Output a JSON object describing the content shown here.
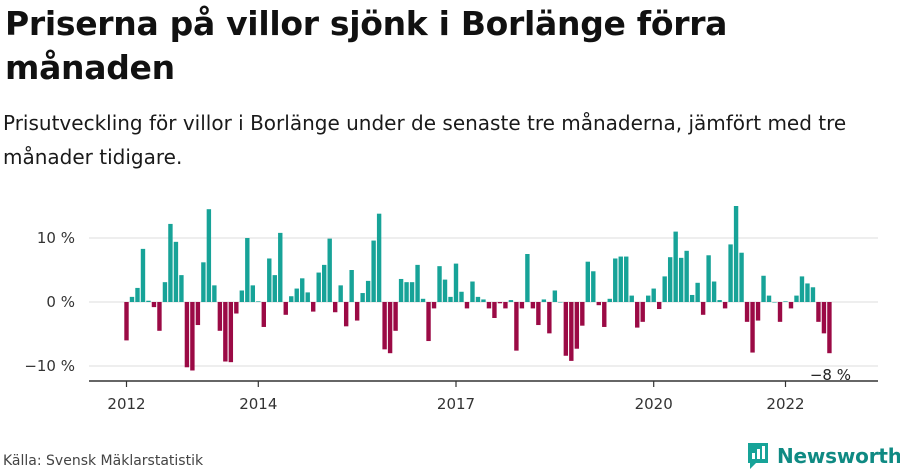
{
  "header": {
    "title": "Priserna på villor sjönk i Borlänge förra månaden",
    "subtitle": "Prisutveckling för villor i Borlänge under de senaste tre månaderna, jämfört med tre månader tidigare."
  },
  "footer": {
    "source": "Källa: Svensk Mäklarstatistik",
    "brand": "Newsworthy"
  },
  "colors": {
    "positive": "#17a398",
    "negative": "#9b0a45",
    "brand": "#0f8a83"
  },
  "chart_data": {
    "type": "bar",
    "title": "",
    "xlabel": "",
    "ylabel": "",
    "ylim": [
      -12,
      16.5
    ],
    "grid": true,
    "y_ticks": [
      {
        "value": 10,
        "label": "10 %"
      },
      {
        "value": 0,
        "label": "0 %"
      },
      {
        "value": -10,
        "label": "−10 %"
      }
    ],
    "x_ticks": [
      {
        "value": 2012,
        "label": "2012"
      },
      {
        "value": 2014,
        "label": "2014"
      },
      {
        "value": 2017,
        "label": "2017"
      },
      {
        "value": 2020,
        "label": "2020"
      },
      {
        "value": 2022,
        "label": "2022"
      }
    ],
    "x_start": 2012,
    "points_per_year": 12,
    "values": [
      -6.0,
      0.8,
      2.2,
      8.3,
      0.2,
      -0.8,
      -4.5,
      3.1,
      12.2,
      9.4,
      4.2,
      -10.2,
      -10.7,
      -3.6,
      6.2,
      14.5,
      2.6,
      -4.5,
      -9.3,
      -9.4,
      -1.8,
      1.8,
      10.0,
      2.6,
      0.1,
      -3.9,
      6.8,
      4.2,
      10.8,
      -2.0,
      0.9,
      2.1,
      3.7,
      1.5,
      -1.5,
      4.6,
      5.8,
      9.9,
      -1.6,
      2.6,
      -3.8,
      5.0,
      -2.9,
      1.4,
      3.3,
      9.6,
      13.8,
      -7.4,
      -8.0,
      -4.5,
      3.6,
      3.1,
      3.1,
      5.8,
      0.5,
      -6.1,
      -1.0,
      5.6,
      3.5,
      0.8,
      6.0,
      1.6,
      -1.0,
      3.2,
      0.8,
      0.4,
      -1.0,
      -2.5,
      -0.2,
      -1.0,
      0.3,
      -7.6,
      -1.0,
      7.5,
      -1.0,
      -3.6,
      0.4,
      -4.9,
      1.8,
      0.0,
      -8.4,
      -9.2,
      -7.3,
      -3.7,
      6.3,
      4.8,
      -0.5,
      -3.9,
      0.5,
      6.8,
      7.1,
      7.1,
      1.0,
      -4.0,
      -3.1,
      1.0,
      2.1,
      -1.1,
      4.0,
      7.0,
      11.0,
      6.9,
      8.0,
      1.1,
      3.0,
      -2.0,
      7.3,
      3.2,
      0.3,
      -1.0,
      9.0,
      15.0,
      7.7,
      -3.1,
      -7.9,
      -2.9,
      4.1,
      1.0,
      0.0,
      -3.1,
      0.1,
      -1.0,
      1.0,
      4.0,
      2.9,
      2.3,
      -3.1,
      -4.9,
      -8.0
    ],
    "annotation": {
      "label": "−8 %"
    }
  }
}
